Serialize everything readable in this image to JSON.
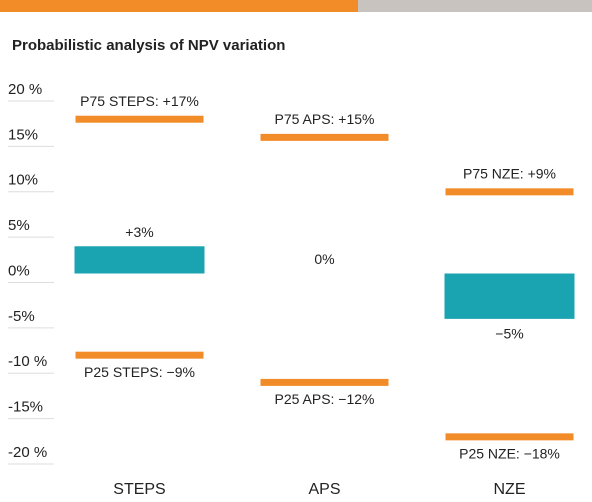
{
  "chart_data": {
    "type": "bar",
    "title": "Probabilistic analysis of NPV variation",
    "categories": [
      "STEPS",
      "APS",
      "NZE"
    ],
    "values": [
      3,
      0,
      -5
    ],
    "value_labels": [
      "+3%",
      "0%",
      "−5%"
    ],
    "color": "#1aa3b0",
    "ranges": [
      {
        "color": "#f28c28",
        "values": [
          17,
          15,
          9
        ],
        "value_labels": [
          "P75 STEPS: +17%",
          "P75 APS: +15%",
          "P75 NZE: +9%"
        ]
      },
      {
        "color": "#f28c28",
        "values": [
          -9,
          -12,
          -18
        ],
        "value_labels": [
          "P25 STEPS: −9%",
          "P25 APS: −12%",
          "P25 NZE: −18%"
        ]
      }
    ],
    "ylim": [
      -20,
      20
    ],
    "yticks": [
      {
        "value": 20,
        "label": "20 %"
      },
      {
        "value": 15,
        "label": "15%"
      },
      {
        "value": 10,
        "label": "10%"
      },
      {
        "value": 5,
        "label": "5%"
      },
      {
        "value": 0,
        "label": "0%"
      },
      {
        "value": -5,
        "label": "-5%"
      },
      {
        "value": -10,
        "label": "-10 %"
      },
      {
        "value": -15,
        "label": "-15%"
      },
      {
        "value": -20,
        "label": "-20 %"
      }
    ],
    "grid": true
  }
}
